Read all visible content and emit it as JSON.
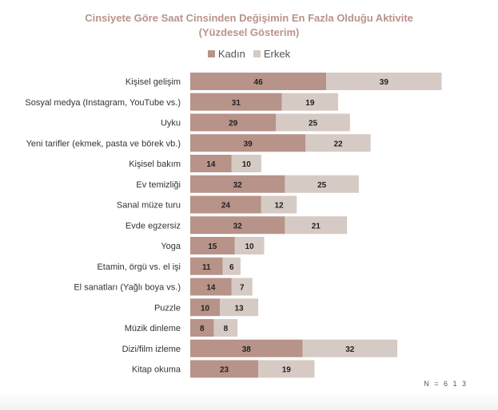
{
  "chart_data": {
    "type": "bar",
    "orientation": "horizontal",
    "stacked": true,
    "title_line1": "Cinsiyete Göre Saat Cinsinden Değişimin En Fazla Olduğu Aktivite",
    "title_line2": "(Yüzdesel Gösterim)",
    "legend_position": "top-center",
    "categories": [
      "Kişisel gelişim",
      "Sosyal medya (Instagram, YouTube vs.)",
      "Uyku",
      "Yeni tarifler (ekmek, pasta ve börek vb.)",
      "Kişisel bakım",
      "Ev temizliği",
      "Sanal müze turu",
      "Evde egzersiz",
      "Yoga",
      "Etamin, örgü vs. el işi",
      "El sanatları (Yağlı boya vs.)",
      "Puzzle",
      "Müzik dinleme",
      "Dizi/film izleme",
      "Kitap okuma"
    ],
    "series": [
      {
        "name": "Kadın",
        "color": "#b89389",
        "values": [
          46,
          31,
          29,
          39,
          14,
          32,
          24,
          32,
          15,
          11,
          14,
          10,
          8,
          38,
          23
        ]
      },
      {
        "name": "Erkek",
        "color": "#d6cac4",
        "values": [
          39,
          19,
          25,
          22,
          10,
          25,
          12,
          21,
          10,
          6,
          7,
          13,
          8,
          32,
          19
        ]
      }
    ],
    "note": "N = 6 1 3"
  }
}
